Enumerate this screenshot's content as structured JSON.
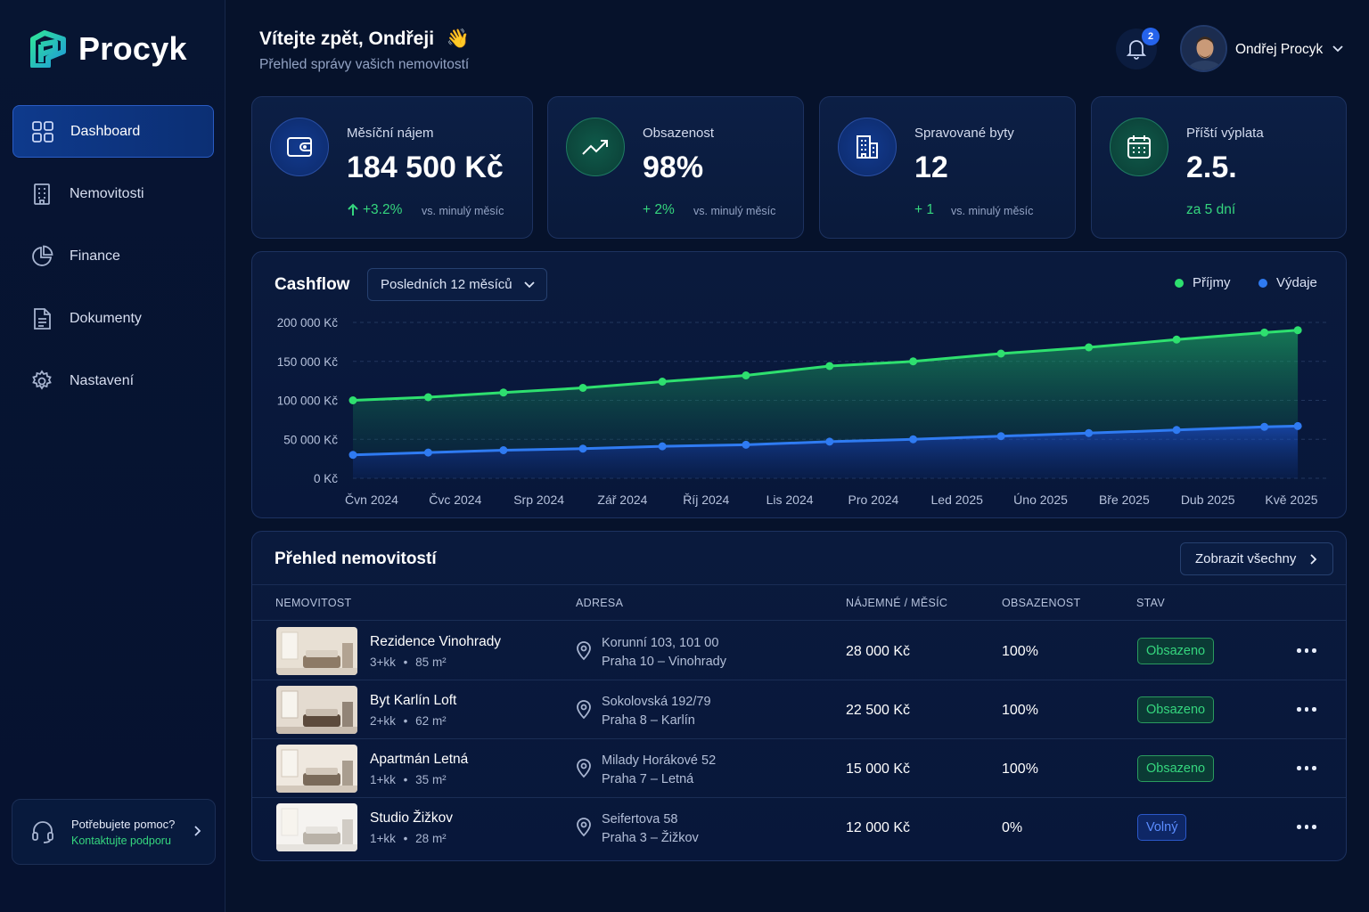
{
  "app": {
    "name": "Procyk"
  },
  "sidebar": {
    "items": [
      {
        "label": "Dashboard",
        "icon": "grid-icon",
        "active": true
      },
      {
        "label": "Nemovitosti",
        "icon": "building-icon",
        "active": false
      },
      {
        "label": "Finance",
        "icon": "pie-chart-icon",
        "active": false
      },
      {
        "label": "Dokumenty",
        "icon": "document-icon",
        "active": false
      },
      {
        "label": "Nastavení",
        "icon": "gear-icon",
        "active": false
      }
    ],
    "help": {
      "title": "Potřebujete pomoc?",
      "link": "Kontaktujte podporu"
    }
  },
  "header": {
    "welcome": "Vítejte zpět, Ondřeji",
    "wave": "👋",
    "subtitle": "Přehled správy vašich nemovitostí",
    "notifications": "2",
    "user_name": "Ondřej Procyk"
  },
  "stats": [
    {
      "label": "Měsíční nájem",
      "value": "184 500 Kč",
      "delta": "+3.2%",
      "vs": "vs. minulý měsíc",
      "icon": "wallet-icon"
    },
    {
      "label": "Obsazenost",
      "value": "98%",
      "delta": "+ 2%",
      "vs": "vs. minulý měsíc",
      "icon": "trend-up-icon"
    },
    {
      "label": "Spravované byty",
      "value": "12",
      "delta": "+ 1",
      "vs": "vs. minulý měsíc",
      "icon": "building-icon"
    },
    {
      "label": "Příští výplata",
      "value": "2.5.",
      "delta": "za 5 dní",
      "vs": "",
      "icon": "calendar-icon"
    }
  ],
  "cashflow": {
    "title": "Cashflow",
    "range_label": "Posledních 12 měsíců",
    "legend_income": "Příjmy",
    "legend_expense": "Výdaje"
  },
  "colors": {
    "income": "#2ee06f",
    "expense": "#2f7bf2",
    "accent": "#35d67e"
  },
  "chart_data": {
    "type": "area",
    "y_ticks": [
      "0 Kč",
      "50 000 Kč",
      "100 000 Kč",
      "150 000 Kč",
      "200 000 Kč"
    ],
    "ylim": [
      0,
      200000
    ],
    "categories": [
      "Čvn 2024",
      "Čvc 2024",
      "Srp 2024",
      "Zář 2024",
      "Říj 2024",
      "Lis 2024",
      "Pro 2024",
      "Led 2025",
      "Úno 2025",
      "Bře 2025",
      "Dub 2025",
      "Kvě 2025"
    ],
    "series": [
      {
        "name": "Příjmy",
        "x": [
          0,
          0.9,
          1.8,
          2.75,
          3.7,
          4.7,
          5.7,
          6.7,
          7.75,
          8.8,
          9.85,
          10.9,
          11.3
        ],
        "values": [
          100000,
          104000,
          110000,
          116000,
          124000,
          132000,
          144000,
          150000,
          160000,
          168000,
          178000,
          187000,
          190000
        ]
      },
      {
        "name": "Výdaje",
        "x": [
          0,
          0.9,
          1.8,
          2.75,
          3.7,
          4.7,
          5.7,
          6.7,
          7.75,
          8.8,
          9.85,
          10.9,
          11.3
        ],
        "values": [
          30000,
          33000,
          36000,
          38000,
          41000,
          43000,
          47000,
          50000,
          54000,
          58000,
          62000,
          66000,
          67000
        ]
      }
    ],
    "grid": true,
    "legend": "top-right"
  },
  "table": {
    "title": "Přehled nemovitostí",
    "view_all": "Zobrazit všechny",
    "headers": [
      "NEMOVITOST",
      "ADRESA",
      "NÁJEMNÉ / MĚSÍC",
      "OBSAZENOST",
      "STAV"
    ],
    "rows": [
      {
        "name": "Rezidence Vinohrady",
        "rooms": "3+kk",
        "area": "85 m²",
        "addr1": "Korunní 103, 101 00",
        "addr2": "Praha 10 – Vinohrady",
        "rent": "28 000 Kč",
        "occ": "100%",
        "status": "Obsazeno",
        "status_type": "green"
      },
      {
        "name": "Byt Karlín Loft",
        "rooms": "2+kk",
        "area": "62 m²",
        "addr1": "Sokolovská 192/79",
        "addr2": "Praha 8 – Karlín",
        "rent": "22 500 Kč",
        "occ": "100%",
        "status": "Obsazeno",
        "status_type": "green"
      },
      {
        "name": "Apartmán Letná",
        "rooms": "1+kk",
        "area": "35 m²",
        "addr1": "Milady Horákové 52",
        "addr2": "Praha 7 – Letná",
        "rent": "15 000 Kč",
        "occ": "100%",
        "status": "Obsazeno",
        "status_type": "green"
      },
      {
        "name": "Studio Žižkov",
        "rooms": "1+kk",
        "area": "28 m²",
        "addr1": "Seifertova 58",
        "addr2": "Praha 3 – Žižkov",
        "rent": "12 000 Kč",
        "occ": "0%",
        "status": "Volný",
        "status_type": "blue"
      }
    ]
  }
}
